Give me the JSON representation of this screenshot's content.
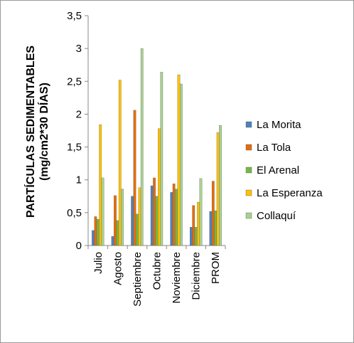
{
  "chart_data": {
    "type": "bar",
    "title": "",
    "xlabel": "",
    "ylabel_line1": "PARTÍCULAS SEDIMENTABLES",
    "ylabel_line2": "(mg/cm2*30 DÍAS)",
    "ylim": [
      0,
      3.5
    ],
    "ytick_values": [
      0,
      0.5,
      1,
      1.5,
      2,
      2.5,
      3,
      3.5
    ],
    "ytick_labels": [
      "0",
      "0,5",
      "1",
      "1,5",
      "2",
      "2,5",
      "3",
      "3,5"
    ],
    "categories": [
      "Julio",
      "Agosto",
      "Septiembre",
      "Octubre",
      "Noviembre",
      "Diciembre",
      "PROM"
    ],
    "grid": false,
    "legend_position": "right",
    "series": [
      {
        "name": "La Morita",
        "color": "#4f81bd",
        "values": [
          0.23,
          0.14,
          0.75,
          0.91,
          0.81,
          0.28,
          0.52
        ]
      },
      {
        "name": "La Tola",
        "color": "#e46c0a",
        "values": [
          0.44,
          0.76,
          2.06,
          1.03,
          0.94,
          0.61,
          0.98
        ]
      },
      {
        "name": "El Arenal",
        "color": "#77b842",
        "values": [
          0.4,
          0.38,
          0.48,
          0.75,
          0.86,
          0.28,
          0.53
        ]
      },
      {
        "name": "La Esperanza",
        "color": "#ffc000",
        "values": [
          1.84,
          2.52,
          0.88,
          1.78,
          2.6,
          0.66,
          1.72
        ]
      },
      {
        "name": "Collaquí",
        "color": "#a9d18e",
        "values": [
          1.03,
          0.86,
          3.0,
          2.64,
          2.46,
          1.02,
          1.83
        ]
      }
    ]
  }
}
